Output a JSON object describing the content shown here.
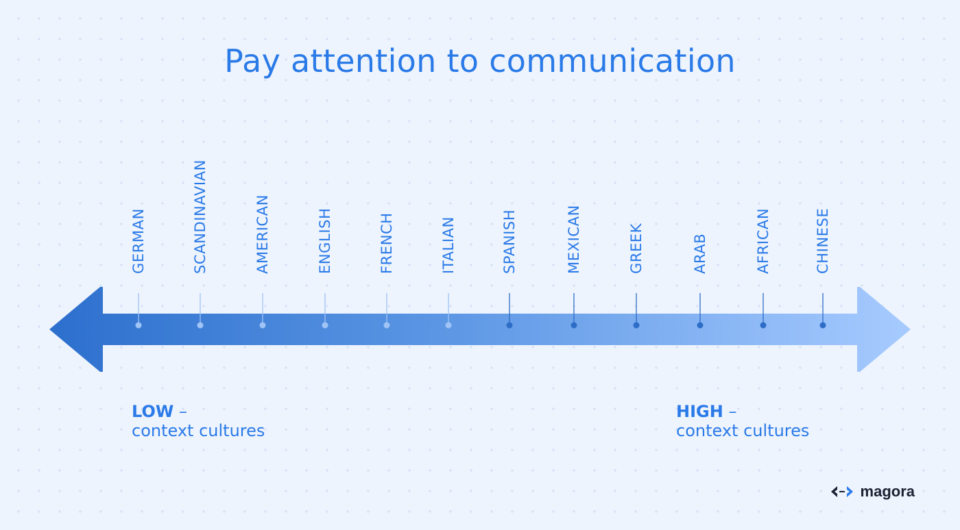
{
  "title": "Pay attention to communication",
  "scale": {
    "labels": [
      "GERMAN",
      "SCANDINAVIAN",
      "AMERICAN",
      "ENGLISH",
      "FRENCH",
      "ITALIAN",
      "SPANISH",
      "MEXICAN",
      "GREEK",
      "ARAB",
      "AFRICAN",
      "CHINESE"
    ]
  },
  "legend": {
    "low": {
      "strong": "LOW",
      "dash": "–",
      "sub": "context cultures"
    },
    "high": {
      "strong": "HIGH",
      "dash": "–",
      "sub": "context cultures"
    }
  },
  "brand": {
    "name": "magora",
    "icon": "code-arrows-icon"
  },
  "colors": {
    "accent": "#2a7ae8",
    "arrow_dark": "#2c6fcd",
    "arrow_light": "#a7cbff",
    "marker_light": "#9fc4f5",
    "marker_dark": "#2d6dc7"
  }
}
